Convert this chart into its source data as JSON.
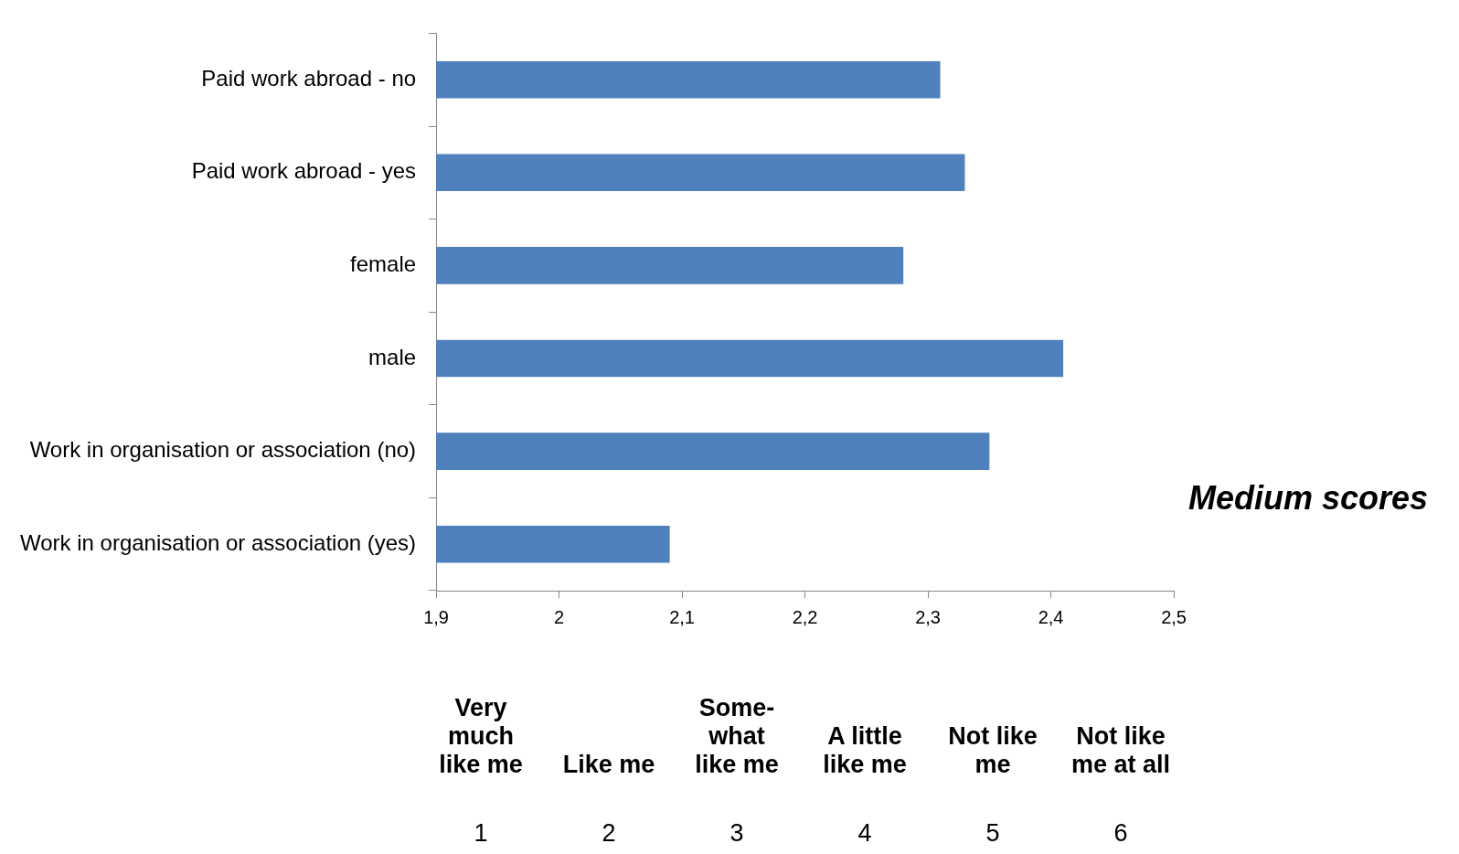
{
  "chart_data": {
    "type": "bar",
    "orientation": "horizontal",
    "categories": [
      "Paid work abroad - no",
      "Paid work abroad - yes",
      "female",
      "male",
      "Work in organisation or association (no)",
      "Work in organisation or association (yes)"
    ],
    "values": [
      2.31,
      2.33,
      2.28,
      2.41,
      2.35,
      2.09
    ],
    "color": "#4f81bd",
    "xlim": [
      1.9,
      2.5
    ],
    "xticks": [
      {
        "value": 1.9,
        "label": "1,9"
      },
      2,
      {
        "value": 2.1,
        "label": "2,1"
      },
      {
        "value": 2.2,
        "label": "2,2"
      },
      {
        "value": 2.3,
        "label": "2,3"
      },
      {
        "value": 2.4,
        "label": "2,4"
      },
      {
        "value": 2.5,
        "label": "2,5"
      }
    ],
    "grid": false,
    "annotations": [
      "Medium scores",
      "Very much like me",
      "1",
      "Like me",
      "2",
      "Some-what like me",
      "3",
      "A little like me",
      "4",
      "Not like me",
      "5",
      "Not like me at all",
      "6"
    ]
  }
}
